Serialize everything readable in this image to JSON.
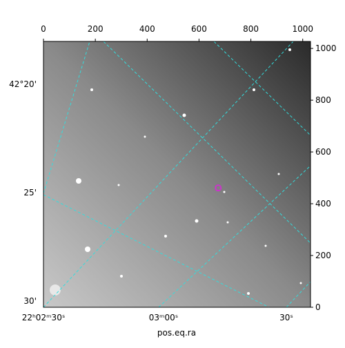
{
  "chart_data": {
    "type": "image",
    "xlabel": "pos.eq.ra",
    "xlim": [
      0,
      1030
    ],
    "xticks": [
      0,
      200,
      400,
      600,
      800,
      1000
    ],
    "ylim": [
      0,
      1027
    ],
    "yticks": [
      0,
      200,
      400,
      600,
      800,
      1000
    ],
    "ra_labels": [
      "22ʰ02ᵐ30ˢ",
      "03ᵐ00ˢ",
      "30ˢ"
    ],
    "dec_labels": [
      "42°20'",
      "25'",
      "30'"
    ],
    "marker": {
      "x": 674,
      "y": 461,
      "color": "#cc33cc"
    },
    "grid_color": "#33dddd"
  }
}
